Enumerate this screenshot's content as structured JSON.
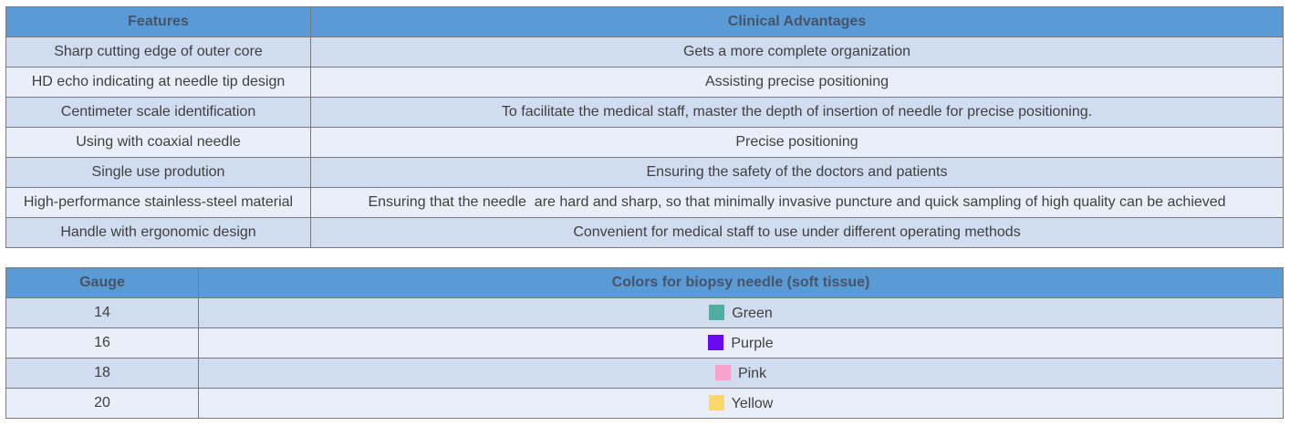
{
  "features_table": {
    "headers": [
      "Features",
      "Clinical Advantages"
    ],
    "rows": [
      [
        "Sharp cutting edge of outer core",
        "Gets a more complete organization"
      ],
      [
        "HD echo indicating at needle tip design",
        "Assisting precise positioning"
      ],
      [
        "Centimeter scale identification",
        "To facilitate the medical staff, master the depth of insertion of needle for precise positioning."
      ],
      [
        "Using with coaxial needle",
        "Precise positioning"
      ],
      [
        "Single use prodution",
        "Ensuring the safety of the doctors and patients"
      ],
      [
        "High-performance stainless-steel material",
        "Ensuring that the needle  are hard and sharp, so that minimally invasive puncture and quick sampling of high quality can be achieved"
      ],
      [
        "Handle with ergonomic design",
        "Convenient for medical staff to use under different operating methods"
      ]
    ]
  },
  "colors_table": {
    "headers": [
      "Gauge",
      "Colors for biopsy needle (soft tissue)"
    ],
    "rows": [
      {
        "gauge": "14",
        "color_name": "Green",
        "swatch": "#4fada2"
      },
      {
        "gauge": "16",
        "color_name": "Purple",
        "swatch": "#6a0af5"
      },
      {
        "gauge": "18",
        "color_name": "Pink",
        "swatch": "#f7a3cc"
      },
      {
        "gauge": "20",
        "color_name": "Yellow",
        "swatch": "#fdd66c"
      }
    ]
  },
  "colors": {
    "header_bg": "#5b9bd5",
    "header_text": "#44546a",
    "row_dark": "#d0dcef",
    "row_light": "#e9eef8"
  }
}
